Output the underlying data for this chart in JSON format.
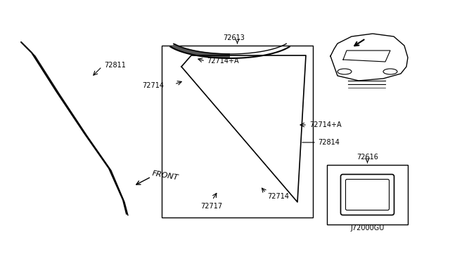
{
  "bg_color": "#ffffff",
  "line_color": "#000000",
  "label_color": "#000000",
  "parts": {
    "72811": {
      "label": "72811"
    },
    "72613": {
      "label": "72613"
    },
    "72714+A_top": {
      "label": "72714+A"
    },
    "72714+A_right": {
      "label": "72714+A"
    },
    "72814": {
      "label": "72814"
    },
    "72714_left": {
      "label": "72714"
    },
    "72717": {
      "label": "72717"
    },
    "72714_bottom": {
      "label": "72714"
    },
    "72616": {
      "label": "72616"
    },
    "J72000GU": {
      "label": "J72000GU"
    },
    "FRONT": {
      "label": "FRONT"
    }
  },
  "font_size_label": 7,
  "font_size_diagram": 7
}
